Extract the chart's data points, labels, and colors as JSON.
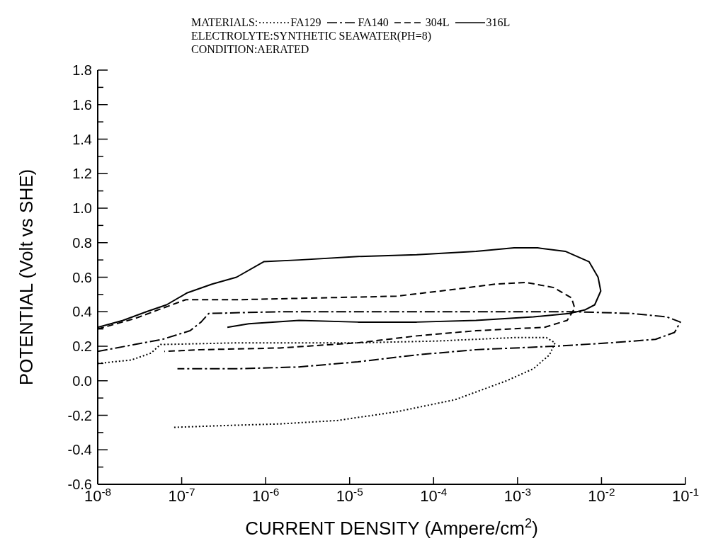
{
  "chart_data": {
    "type": "line",
    "legend_title": "MATERIALS:",
    "legend": "top",
    "annotations": [
      "ELECTROLYTE:SYNTHETIC SEAWATER(PH=8)",
      "CONDITION:AERATED"
    ],
    "xlabel": "CURRENT DENSITY (Ampere/cm$^{2}$)",
    "ylabel": "POTENTIAL (Volt vs SHE)",
    "log": "x",
    "xlim": [
      1e-08,
      0.1
    ],
    "xticks": [
      {
        "value": 1e-08,
        "label": "10$^{-8}$"
      },
      {
        "value": 1e-07,
        "label": "10$^{-7}$"
      },
      {
        "value": 1e-06,
        "label": "10$^{-6}$"
      },
      {
        "value": 1e-05,
        "label": "10$^{-5}$"
      },
      {
        "value": 0.0001,
        "label": "10$^{-4}$"
      },
      {
        "value": 0.001,
        "label": "10$^{-3}$"
      },
      {
        "value": 0.01,
        "label": "10$^{-2}$"
      },
      {
        "value": 0.1,
        "label": "10$^{-1}$"
      }
    ],
    "ylim": [
      -0.6,
      1.8
    ],
    "yticks": [
      -0.6,
      {
        "value": -0.5,
        "label": null
      },
      -0.4,
      {
        "value": -0.3,
        "label": null
      },
      -0.2,
      {
        "value": -0.1,
        "label": null
      },
      {
        "value": 0,
        "label": "0.0"
      },
      {
        "value": 0.1,
        "label": null
      },
      0.2,
      {
        "value": 0.3,
        "label": null
      },
      0.4,
      {
        "value": 0.5,
        "label": null
      },
      0.6,
      {
        "value": 0.7,
        "label": null
      },
      0.8,
      {
        "value": 0.9,
        "label": null
      },
      {
        "value": 1.0,
        "label": "1.0"
      },
      {
        "value": 1.1,
        "label": null
      },
      1.2,
      {
        "value": 1.3,
        "label": null
      },
      1.4,
      {
        "value": 1.5,
        "label": null
      },
      1.6,
      {
        "value": 1.7,
        "label": null
      },
      1.8
    ],
    "series": [
      {
        "name": "FA129",
        "color": "#000000",
        "line_style": "dotted",
        "x": [
          1e-08,
          2.5e-08,
          4.3e-08,
          5.6e-08,
          5e-07,
          1.26e-05,
          0.000107,
          0.00091,
          0.0022,
          0.0028,
          0.0024,
          0.00155,
          0.00074,
          0.00018,
          3.6e-05,
          7.2e-06,
          1.48e-06,
          3e-07,
          8.1e-08
        ],
        "values": [
          0.1,
          0.12,
          0.16,
          0.21,
          0.22,
          0.22,
          0.23,
          0.25,
          0.25,
          0.22,
          0.15,
          0.07,
          0.0,
          -0.11,
          -0.18,
          -0.23,
          -0.25,
          -0.26,
          -0.27
        ]
      },
      {
        "name": "FA140",
        "color": "#000000",
        "line_style": "dashdot",
        "x": [
          1e-08,
          2.75e-08,
          5.9e-08,
          1.26e-07,
          1.7e-07,
          2.1e-07,
          1.48e-06,
          3.6e-05,
          0.00091,
          0.0046,
          0.023,
          0.06,
          0.087,
          0.074,
          0.044,
          0.013,
          0.0027,
          0.00032,
          6.3e-05,
          1.26e-05,
          2.5e-06,
          5e-07,
          8.9e-08
        ],
        "values": [
          0.17,
          0.21,
          0.24,
          0.29,
          0.34,
          0.39,
          0.4,
          0.4,
          0.4,
          0.4,
          0.39,
          0.37,
          0.34,
          0.28,
          0.24,
          0.22,
          0.2,
          0.18,
          0.15,
          0.11,
          0.08,
          0.07,
          0.07
        ]
      },
      {
        "name": "304L",
        "color": "#000000",
        "line_style": "dashed",
        "x": [
          1e-08,
          2.75e-08,
          5.9e-08,
          1.12e-07,
          5e-07,
          4.3e-06,
          3.6e-05,
          0.00018,
          0.00054,
          0.00126,
          0.0027,
          0.0044,
          0.0048,
          0.0039,
          0.0021,
          0.00032,
          6.3e-05,
          1.26e-05,
          1.48e-06,
          1.7e-07,
          6.2e-08
        ],
        "values": [
          0.3,
          0.36,
          0.42,
          0.47,
          0.47,
          0.48,
          0.49,
          0.53,
          0.56,
          0.57,
          0.54,
          0.48,
          0.42,
          0.35,
          0.31,
          0.29,
          0.26,
          0.22,
          0.19,
          0.18,
          0.17
        ]
      },
      {
        "name": "316L",
        "color": "#000000",
        "line_style": "solid",
        "x": [
          1e-08,
          2e-08,
          3.8e-08,
          6.6e-08,
          1.17e-07,
          2.3e-07,
          4.5e-07,
          9.5e-07,
          2.5e-06,
          1.26e-05,
          6.3e-05,
          0.00032,
          0.00091,
          0.00174,
          0.0037,
          0.0071,
          0.0091,
          0.0098,
          0.0083,
          0.0063,
          0.0041,
          0.00155,
          0.00032,
          6.3e-05,
          1.26e-05,
          2.5e-06,
          6.3e-07,
          3.5e-07
        ],
        "values": [
          0.31,
          0.35,
          0.4,
          0.44,
          0.51,
          0.56,
          0.6,
          0.69,
          0.7,
          0.72,
          0.73,
          0.75,
          0.77,
          0.77,
          0.75,
          0.69,
          0.6,
          0.52,
          0.44,
          0.41,
          0.39,
          0.37,
          0.35,
          0.34,
          0.34,
          0.35,
          0.33,
          0.31
        ]
      }
    ]
  }
}
